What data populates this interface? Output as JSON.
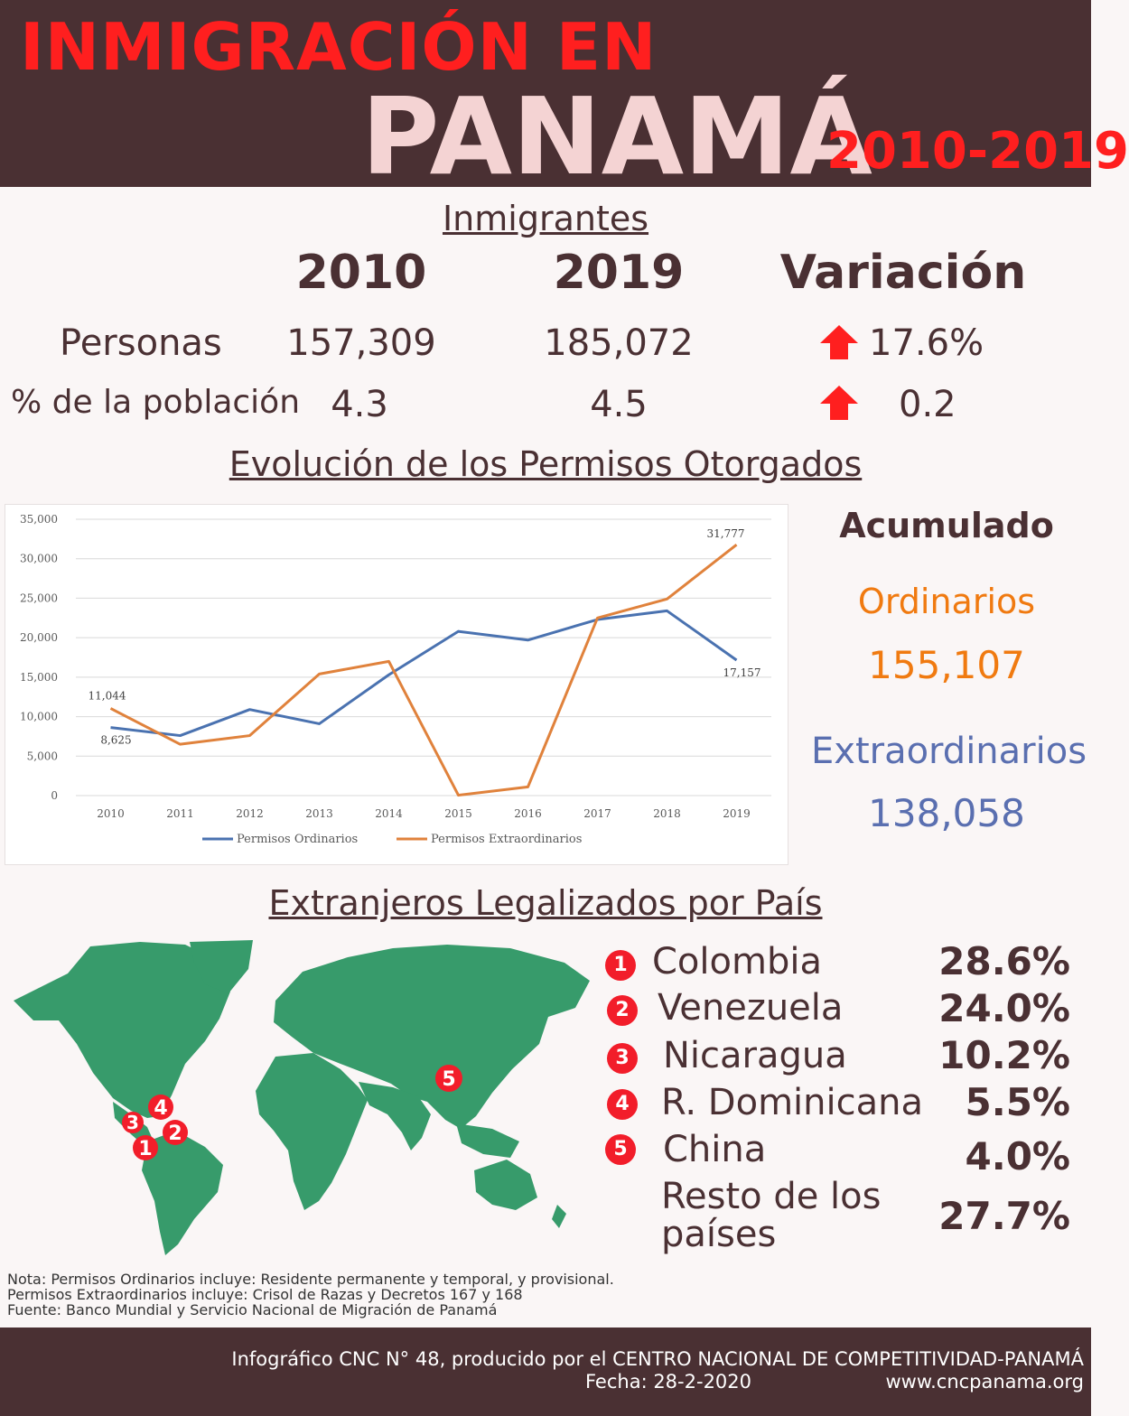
{
  "header": {
    "title_line1": "INMIGRACIÓN EN",
    "title_line2": "PANAMÁ",
    "period": "2010-2019"
  },
  "immigrants": {
    "section_title": "Inmigrantes",
    "col_2010": "2010",
    "col_2019": "2019",
    "col_var": "Variación",
    "rows": [
      {
        "label": "Personas",
        "v2010": "157,309",
        "v2019": "185,072",
        "variation": "17.6%"
      },
      {
        "label": "% de la población",
        "v2010": "4.3",
        "v2019": "4.5",
        "variation": "0.2"
      }
    ]
  },
  "permits": {
    "section_title": "Evolución de los Permisos Otorgados",
    "acc_title": "Acumulado",
    "ordinary_label": "Ordinarios",
    "ordinary_value": "155,107",
    "extra_label": "Extraordinarios",
    "extra_value": "138,058"
  },
  "chart_data": {
    "type": "line",
    "x": [
      "2010",
      "2011",
      "2012",
      "2013",
      "2014",
      "2015",
      "2016",
      "2017",
      "2018",
      "2019"
    ],
    "ylim": [
      0,
      35000
    ],
    "yticks": [
      "0",
      "5,000",
      "10,000",
      "15,000",
      "20,000",
      "25,000",
      "30,000",
      "35,000"
    ],
    "grid": true,
    "legend": "bottom",
    "series": [
      {
        "name": "Permisos Ordinarios",
        "color": "#4a72b0",
        "values": [
          8625,
          7600,
          10900,
          9100,
          15300,
          20800,
          19700,
          22300,
          23400,
          17157
        ]
      },
      {
        "name": "Permisos Extraordinarios",
        "color": "#e0823c",
        "values": [
          11044,
          6500,
          7600,
          15400,
          17000,
          50,
          1100,
          22500,
          24900,
          31777
        ]
      }
    ],
    "data_labels": [
      {
        "series": 0,
        "index": 0,
        "text": "8,625"
      },
      {
        "series": 0,
        "index": 9,
        "text": "17,157"
      },
      {
        "series": 1,
        "index": 0,
        "text": "11,044"
      },
      {
        "series": 1,
        "index": 9,
        "text": "31,777"
      }
    ]
  },
  "countries": {
    "section_title": "Extranjeros Legalizados por País",
    "items": [
      {
        "rank": "1",
        "name": "Colombia",
        "pct": "28.6%"
      },
      {
        "rank": "2",
        "name": "Venezuela",
        "pct": "24.0%"
      },
      {
        "rank": "3",
        "name": "Nicaragua",
        "pct": "10.2%"
      },
      {
        "rank": "4",
        "name": "R. Dominicana",
        "pct": "5.5%"
      },
      {
        "rank": "5",
        "name": "China",
        "pct": "4.0%"
      }
    ],
    "rest_line1": "Resto de los",
    "rest_line2": "países",
    "rest_pct": "27.7%"
  },
  "colors": {
    "header_bg": "#4a3033",
    "accent_red": "#ff1f1f",
    "map_green": "#379b6b",
    "orange": "#f07a10",
    "blue": "#5a6fb0"
  },
  "notes": {
    "line1": "Nota: Permisos Ordinarios incluye: Residente permanente y temporal, y provisional.",
    "line2": "Permisos Extraordinarios incluye: Crisol de Razas y Decretos 167 y 168",
    "line3": "Fuente: Banco Mundial y Servicio Nacional de Migración de Panamá"
  },
  "footer": {
    "line1": "Infográfico CNC N° 48, producido por el CENTRO NACIONAL DE COMPETITIVIDAD-PANAMÁ",
    "date": "Fecha: 28-2-2020",
    "url": "www.cncpanama.org"
  }
}
